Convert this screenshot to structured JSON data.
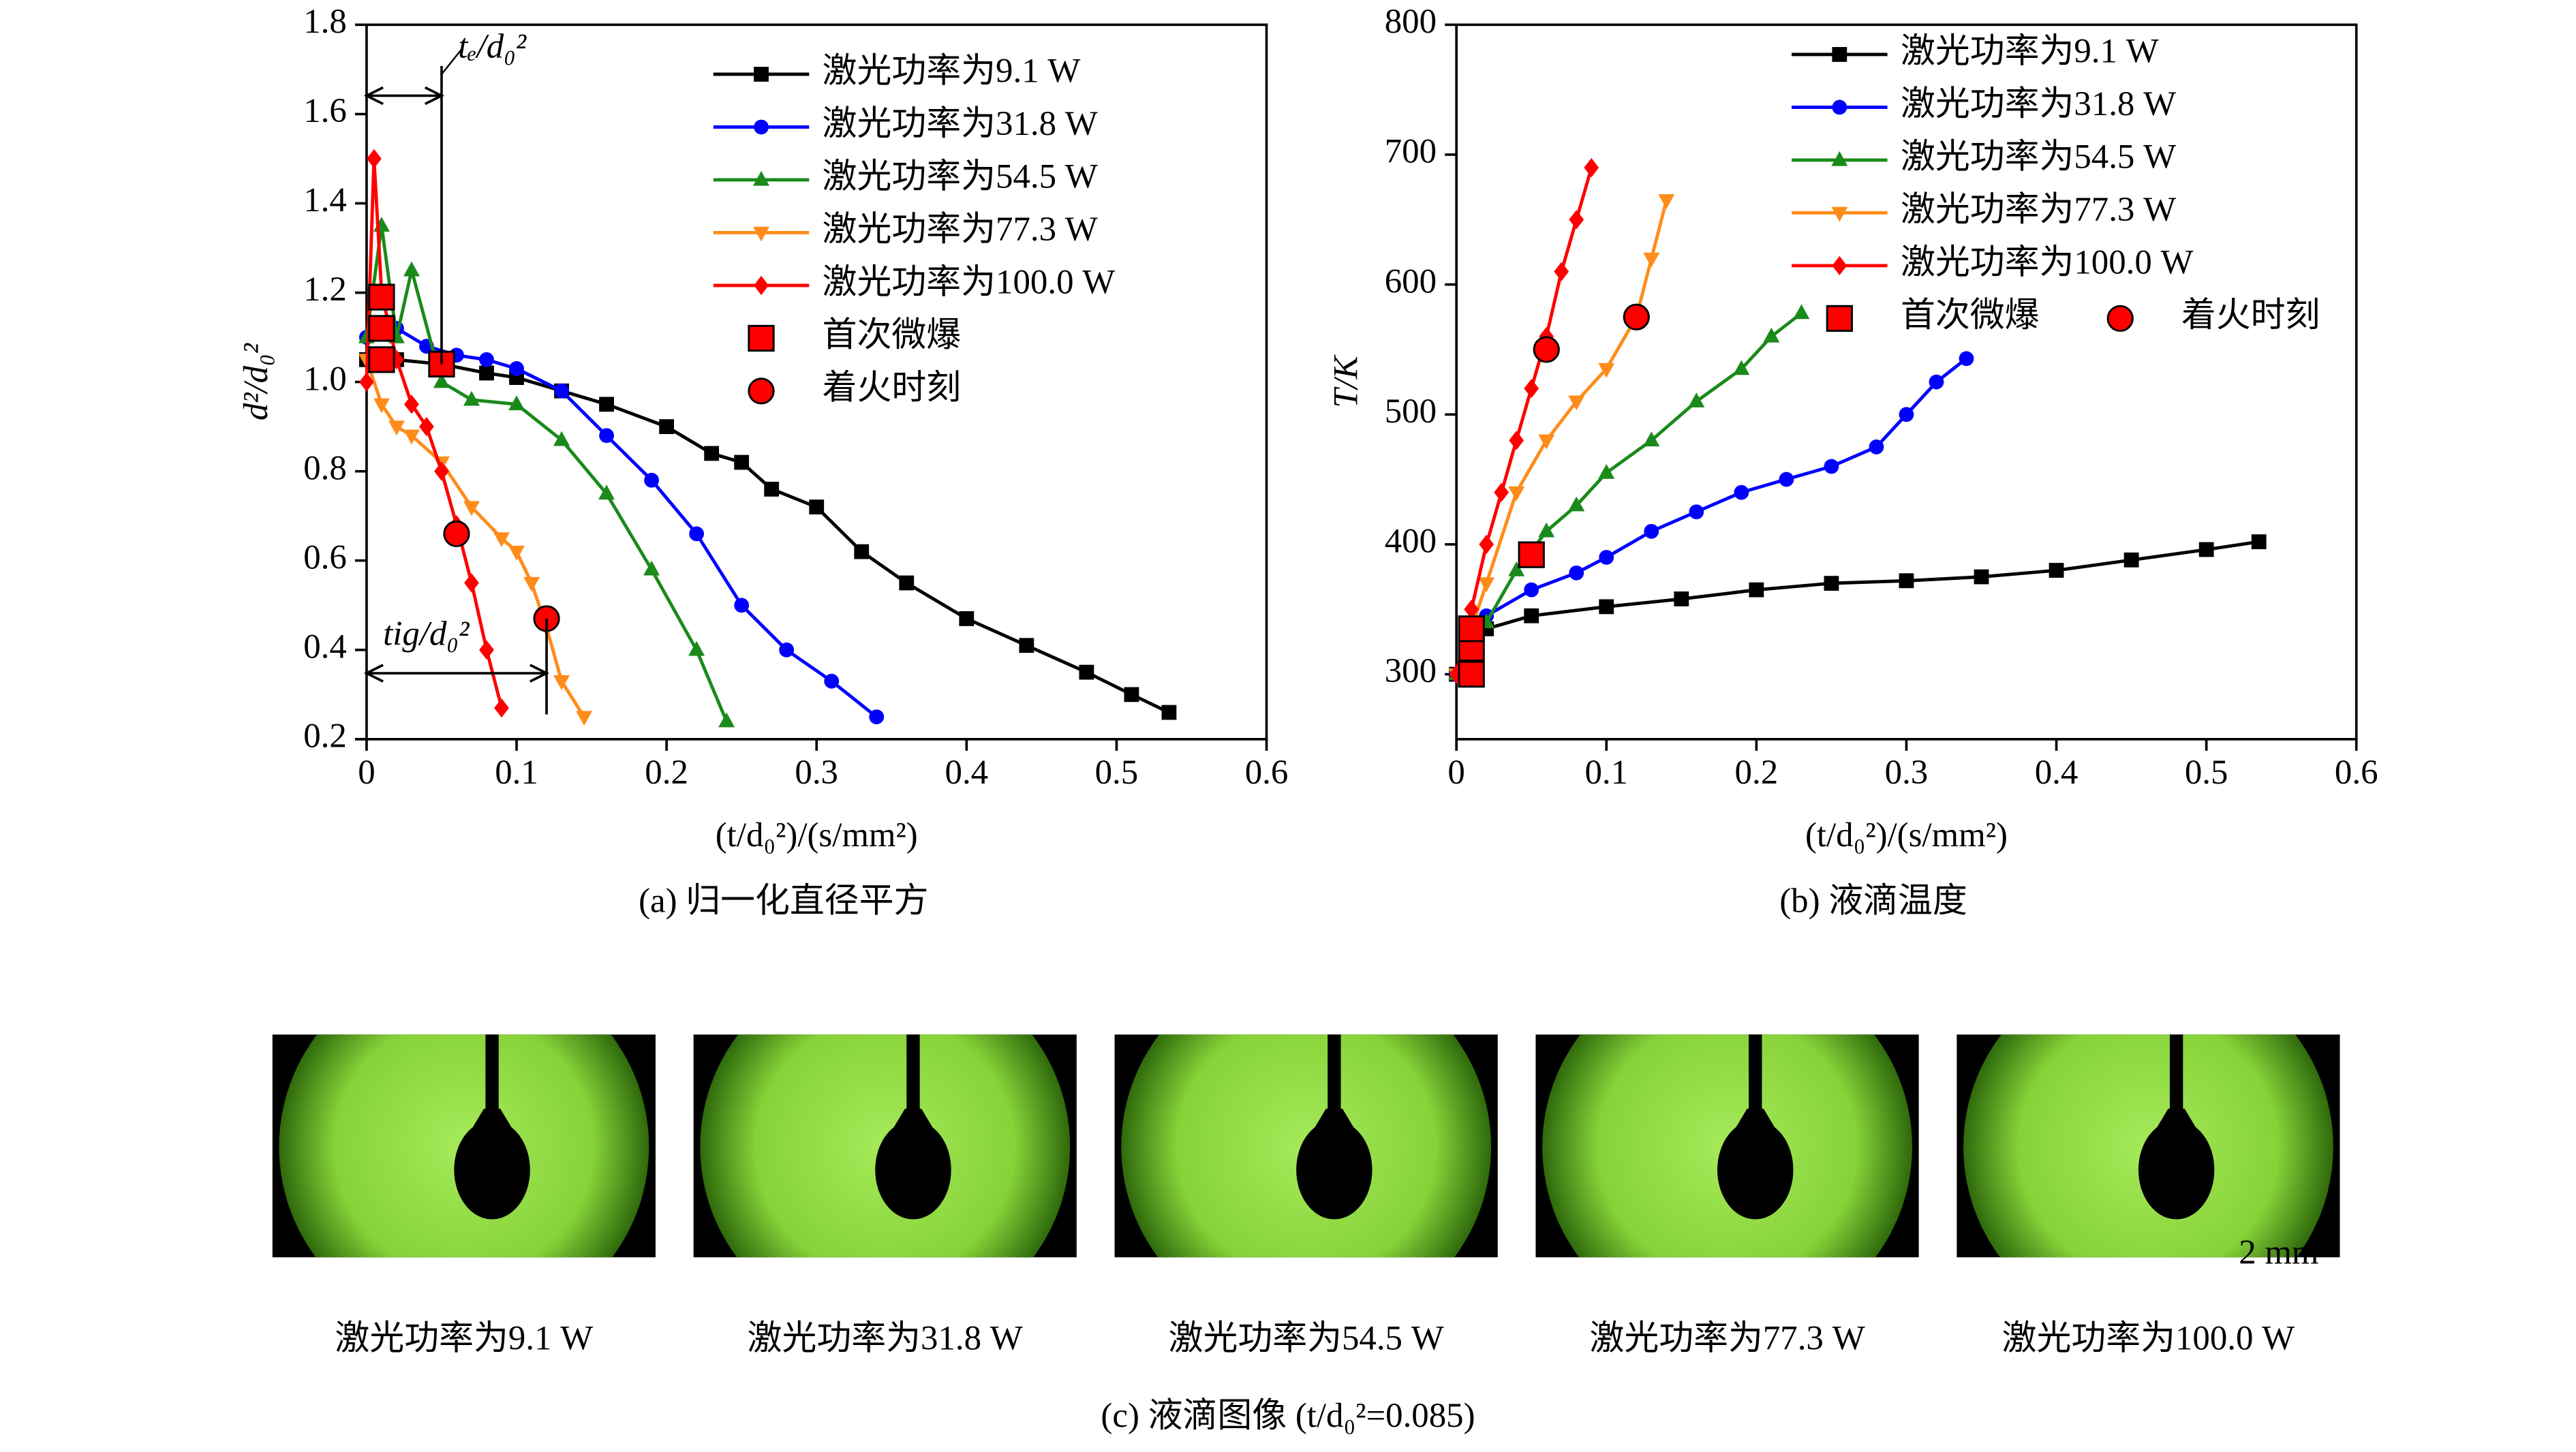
{
  "chart_data": [
    {
      "type": "line",
      "caption": "(a) 归一化直径平方",
      "xlabel": "(t/d₀²)/(s/mm²)",
      "ylabel": "d²/d₀²",
      "xlim": [
        0,
        0.6
      ],
      "xticks": [
        0,
        0.1,
        0.2,
        0.3,
        0.4,
        0.5,
        0.6
      ],
      "ylim": [
        0.2,
        1.8
      ],
      "yticks": [
        0.2,
        0.4,
        0.6,
        0.8,
        {
          "value": 1,
          "label": "1.0"
        },
        1.2,
        1.4,
        1.6,
        1.8
      ],
      "legend": "upper right",
      "annotations": [
        "tₑ/d₀²",
        "tig/d₀²"
      ],
      "series": [
        {
          "name": "激光功率为9.1 W",
          "color": "#000000",
          "marker": "square",
          "x": [
            0,
            0.02,
            0.05,
            0.08,
            0.1,
            0.13,
            0.16,
            0.2,
            0.23,
            0.25,
            0.27,
            0.3,
            0.33,
            0.36,
            0.4,
            0.44,
            0.48,
            0.51,
            0.535
          ],
          "values": [
            1.05,
            1.05,
            1.04,
            1.02,
            1.01,
            0.98,
            0.95,
            0.9,
            0.84,
            0.82,
            0.76,
            0.72,
            0.62,
            0.55,
            0.47,
            0.41,
            0.35,
            0.3,
            0.26
          ]
        },
        {
          "name": "激光功率为31.8 W",
          "color": "#0000ff",
          "marker": "circle",
          "x": [
            0,
            0.02,
            0.04,
            0.06,
            0.08,
            0.1,
            0.13,
            0.16,
            0.19,
            0.22,
            0.25,
            0.28,
            0.31,
            0.34
          ],
          "values": [
            1.1,
            1.12,
            1.08,
            1.06,
            1.05,
            1.03,
            0.98,
            0.88,
            0.78,
            0.66,
            0.5,
            0.4,
            0.33,
            0.25
          ]
        },
        {
          "name": "激光功率为54.5 W",
          "color": "#1a8a1a",
          "marker": "triangle",
          "x": [
            0,
            0.01,
            0.02,
            0.03,
            0.05,
            0.07,
            0.1,
            0.13,
            0.16,
            0.19,
            0.22,
            0.24
          ],
          "values": [
            1.1,
            1.35,
            1.1,
            1.25,
            1.0,
            0.96,
            0.95,
            0.87,
            0.75,
            0.58,
            0.4,
            0.24
          ]
        },
        {
          "name": "激光功率为77.3 W",
          "color": "#ff8c1a",
          "marker": "triangle-down",
          "x": [
            0,
            0.01,
            0.02,
            0.03,
            0.05,
            0.07,
            0.09,
            0.1,
            0.11,
            0.12,
            0.13,
            0.145
          ],
          "values": [
            1.05,
            0.95,
            0.9,
            0.88,
            0.82,
            0.72,
            0.65,
            0.62,
            0.55,
            0.45,
            0.33,
            0.25
          ]
        },
        {
          "name": "激光功率为100.0 W",
          "color": "#ff0000",
          "marker": "diamond",
          "x": [
            0,
            0.005,
            0.01,
            0.02,
            0.03,
            0.04,
            0.05,
            0.06,
            0.07,
            0.08,
            0.09
          ],
          "values": [
            1.0,
            1.5,
            1.2,
            1.05,
            0.95,
            0.9,
            0.8,
            0.68,
            0.55,
            0.4,
            0.27
          ]
        },
        {
          "name": "首次微爆",
          "color": "#ff0000",
          "marker": "square",
          "points_only": true,
          "x": [
            0.01,
            0.01,
            0.01,
            0.05
          ],
          "values": [
            1.19,
            1.12,
            1.05,
            1.04
          ]
        },
        {
          "name": "着火时刻",
          "color": "#ff0000",
          "marker": "circle",
          "points_only": true,
          "x": [
            0.06,
            0.12
          ],
          "values": [
            0.66,
            0.47
          ]
        }
      ]
    },
    {
      "type": "line",
      "caption": "(b) 液滴温度",
      "xlabel": "(t/d₀²)/(s/mm²)",
      "ylabel": "T/K",
      "xlim": [
        0,
        0.6
      ],
      "xticks": [
        0,
        0.1,
        0.2,
        0.3,
        0.4,
        0.5,
        0.6
      ],
      "ylim": [
        250,
        800
      ],
      "yticks": [
        300,
        400,
        500,
        600,
        700,
        800
      ],
      "legend": "upper right",
      "series": [
        {
          "name": "激光功率为9.1 W",
          "color": "#000000",
          "marker": "square",
          "x": [
            0,
            0.01,
            0.02,
            0.05,
            0.1,
            0.15,
            0.2,
            0.25,
            0.3,
            0.35,
            0.4,
            0.45,
            0.5,
            0.535
          ],
          "values": [
            300,
            320,
            335,
            345,
            352,
            358,
            365,
            370,
            372,
            375,
            380,
            388,
            396,
            402
          ]
        },
        {
          "name": "激光功率为31.8 W",
          "color": "#0000ff",
          "marker": "circle",
          "x": [
            0,
            0.02,
            0.05,
            0.08,
            0.1,
            0.13,
            0.16,
            0.19,
            0.22,
            0.25,
            0.28,
            0.3,
            0.32,
            0.34
          ],
          "values": [
            300,
            345,
            365,
            378,
            390,
            410,
            425,
            440,
            450,
            460,
            475,
            500,
            525,
            543
          ]
        },
        {
          "name": "激光功率为54.5 W",
          "color": "#1a8a1a",
          "marker": "triangle",
          "x": [
            0,
            0.02,
            0.04,
            0.06,
            0.08,
            0.1,
            0.13,
            0.16,
            0.19,
            0.21,
            0.23
          ],
          "values": [
            300,
            340,
            380,
            410,
            430,
            455,
            480,
            510,
            535,
            560,
            578
          ]
        },
        {
          "name": "激光功率为77.3 W",
          "color": "#ff8c1a",
          "marker": "triangle-down",
          "x": [
            0,
            0.02,
            0.04,
            0.06,
            0.08,
            0.1,
            0.12,
            0.13,
            0.14
          ],
          "values": [
            300,
            370,
            440,
            480,
            510,
            535,
            575,
            620,
            665
          ]
        },
        {
          "name": "激光功率为100.0 W",
          "color": "#ff0000",
          "marker": "diamond",
          "x": [
            0,
            0.01,
            0.02,
            0.03,
            0.04,
            0.05,
            0.06,
            0.07,
            0.08,
            0.09
          ],
          "values": [
            300,
            350,
            400,
            440,
            480,
            520,
            560,
            610,
            650,
            690
          ]
        },
        {
          "name": "首次微爆",
          "color": "#ff0000",
          "marker": "square",
          "points_only": true,
          "x": [
            0.01,
            0.01,
            0.01,
            0.05
          ],
          "values": [
            300,
            320,
            335,
            392
          ]
        },
        {
          "name": "着火时刻",
          "color": "#ff0000",
          "marker": "circle",
          "points_only": true,
          "x": [
            0.06,
            0.12
          ],
          "values": [
            550,
            575
          ]
        }
      ]
    }
  ],
  "panel_c": {
    "caption": "(c) 液滴图像 (t/d₀²=0.085)",
    "scale_bar": "2 mm",
    "images": [
      "激光功率为9.1 W",
      "激光功率为31.8 W",
      "激光功率为54.5 W",
      "激光功率为77.3 W",
      "激光功率为100.0 W"
    ]
  }
}
